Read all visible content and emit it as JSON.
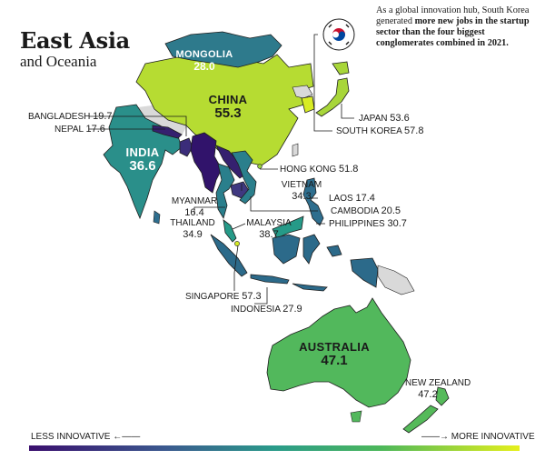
{
  "header": {
    "title": "East Asia",
    "subtitle": "and Oceania"
  },
  "note": {
    "part1": "As a global innovation hub, South Korea generated ",
    "bold": "more new jobs in the startup sector than the four biggest conglomerates combined in 2021."
  },
  "legend": {
    "low_label": "LESS INNOVATIVE",
    "high_label": "MORE INNOVATIVE",
    "scale_colors": [
      "#3a0f6e",
      "#3b5a8f",
      "#2a9b8a",
      "#4db85a",
      "#e6f01c"
    ]
  },
  "countries": {
    "mongolia": {
      "name": "MONGOLIA",
      "value": "28.0",
      "color": "#2e7a8c"
    },
    "china": {
      "name": "CHINA",
      "value": "55.3",
      "color": "#b6dc32"
    },
    "india": {
      "name": "INDIA",
      "value": "36.6",
      "color": "#2a8f8a"
    },
    "bangladesh": {
      "name": "BANGLADESH",
      "value": "19.7",
      "color": "#3b2d7a"
    },
    "nepal": {
      "name": "NEPAL",
      "value": "17.6",
      "color": "#35206f"
    },
    "japan": {
      "name": "JAPAN",
      "value": "53.6",
      "color": "#a8d63a"
    },
    "south_korea": {
      "name": "SOUTH KOREA",
      "value": "57.8",
      "color": "#d8ec24"
    },
    "hong_kong": {
      "name": "HONG KONG",
      "value": "51.8",
      "color": "#96cf40"
    },
    "vietnam": {
      "name": "VIETNAM",
      "value": "34.3",
      "color": "#2b7f8c"
    },
    "laos": {
      "name": "LAOS",
      "value": "17.4",
      "color": "#35206f"
    },
    "cambodia": {
      "name": "CAMBODIA",
      "value": "20.5",
      "color": "#3f3880"
    },
    "philippines": {
      "name": "PHILIPPINES",
      "value": "30.7",
      "color": "#2e6e8e"
    },
    "myanmar": {
      "name": "MYANMAR",
      "value": "16.4",
      "color": "#31136b"
    },
    "thailand": {
      "name": "THAILAND",
      "value": "34.9",
      "color": "#2a7f8c"
    },
    "malaysia": {
      "name": "MALAYSIA",
      "value": "38.7",
      "color": "#269a88"
    },
    "singapore": {
      "name": "SINGAPORE",
      "value": "57.3",
      "color": "#d4ea26"
    },
    "indonesia": {
      "name": "INDONESIA",
      "value": "27.9",
      "color": "#2c6a8a"
    },
    "australia": {
      "name": "AUSTRALIA",
      "value": "47.1",
      "color": "#52b85c"
    },
    "new_zealand": {
      "name": "NEW ZEALAND",
      "value": "47.2",
      "color": "#55ba5a"
    }
  },
  "no_data_color": "#d9d9d9"
}
